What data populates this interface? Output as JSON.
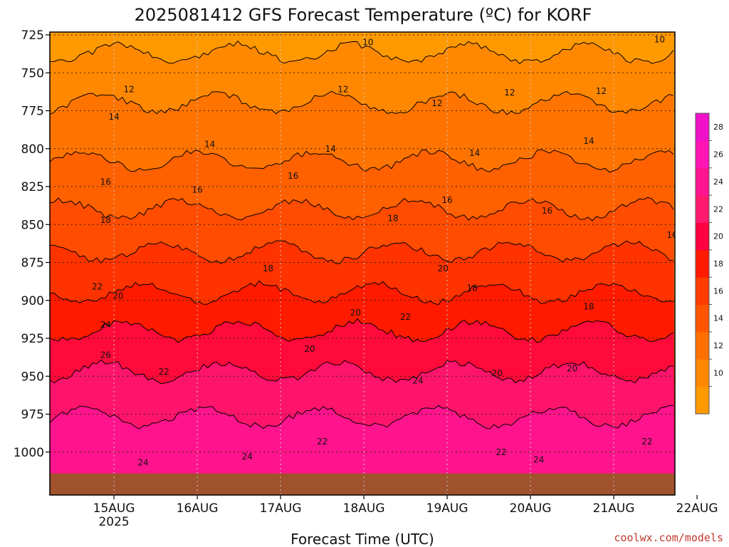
{
  "chart_data": {
    "type": "heatmap",
    "title": "2025081412 GFS Forecast Temperature (ºC) for KORF",
    "xlabel": "Forecast Time (UTC)",
    "x_ticks": [
      "15AUG",
      "16AUG",
      "17AUG",
      "18AUG",
      "19AUG",
      "20AUG",
      "21AUG",
      "22AUG"
    ],
    "x_year": "2025",
    "y_ticks": [
      725,
      750,
      775,
      800,
      825,
      850,
      875,
      900,
      925,
      950,
      975,
      1000
    ],
    "ylim": [
      1015,
      715
    ],
    "y_scale": "pressure (hPa)",
    "grid": "dotted",
    "colorbar": {
      "levels": [
        10,
        12,
        14,
        16,
        18,
        20,
        22,
        24,
        26,
        28
      ],
      "colors": [
        "#ff9900",
        "#ff8800",
        "#ff7000",
        "#ff5500",
        "#ff3b00",
        "#ff1a00",
        "#ff0040",
        "#ff1a6e",
        "#ff1490",
        "#ff14b4",
        "#f012c8"
      ]
    },
    "contour_labels": [
      {
        "text": "10",
        "x": 3.05,
        "y": 730
      },
      {
        "text": "10",
        "x": 6.55,
        "y": 728
      },
      {
        "text": "12",
        "x": 0.18,
        "y": 761
      },
      {
        "text": "12",
        "x": 2.75,
        "y": 761
      },
      {
        "text": "12",
        "x": 3.88,
        "y": 770
      },
      {
        "text": "12",
        "x": 4.75,
        "y": 763
      },
      {
        "text": "12",
        "x": 5.85,
        "y": 762
      },
      {
        "text": "12",
        "x": 6.98,
        "y": 779
      },
      {
        "text": "14",
        "x": 0.0,
        "y": 779
      },
      {
        "text": "14",
        "x": 1.15,
        "y": 797
      },
      {
        "text": "14",
        "x": 2.6,
        "y": 800
      },
      {
        "text": "14",
        "x": 4.33,
        "y": 803
      },
      {
        "text": "14",
        "x": 5.7,
        "y": 795
      },
      {
        "text": "14",
        "x": 6.9,
        "y": 814
      },
      {
        "text": "16",
        "x": -0.1,
        "y": 822
      },
      {
        "text": "16",
        "x": 1.0,
        "y": 827
      },
      {
        "text": "16",
        "x": 2.15,
        "y": 818
      },
      {
        "text": "16",
        "x": 4.0,
        "y": 834
      },
      {
        "text": "16",
        "x": 5.2,
        "y": 841
      },
      {
        "text": "16",
        "x": 6.7,
        "y": 857
      },
      {
        "text": "18",
        "x": -0.1,
        "y": 847
      },
      {
        "text": "18",
        "x": 1.85,
        "y": 879
      },
      {
        "text": "18",
        "x": 3.35,
        "y": 846
      },
      {
        "text": "18",
        "x": 4.3,
        "y": 892
      },
      {
        "text": "18",
        "x": 5.7,
        "y": 904
      },
      {
        "text": "18",
        "x": 6.95,
        "y": 945
      },
      {
        "text": "20",
        "x": 0.05,
        "y": 897
      },
      {
        "text": "20",
        "x": 2.9,
        "y": 908
      },
      {
        "text": "20",
        "x": 2.35,
        "y": 932
      },
      {
        "text": "20",
        "x": 3.95,
        "y": 879
      },
      {
        "text": "20",
        "x": 4.6,
        "y": 948
      },
      {
        "text": "20",
        "x": 5.5,
        "y": 945
      },
      {
        "text": "20",
        "x": 7.05,
        "y": 979
      },
      {
        "text": "22",
        "x": -0.2,
        "y": 891
      },
      {
        "text": "22",
        "x": 3.5,
        "y": 911
      },
      {
        "text": "22",
        "x": 0.6,
        "y": 947
      },
      {
        "text": "22",
        "x": 2.5,
        "y": 993
      },
      {
        "text": "22",
        "x": 4.65,
        "y": 1000
      },
      {
        "text": "22",
        "x": 6.4,
        "y": 993
      },
      {
        "text": "24",
        "x": -0.1,
        "y": 916
      },
      {
        "text": "24",
        "x": 3.65,
        "y": 953
      },
      {
        "text": "24",
        "x": 0.35,
        "y": 1007
      },
      {
        "text": "24",
        "x": 1.6,
        "y": 1003
      },
      {
        "text": "24",
        "x": 5.1,
        "y": 1005
      },
      {
        "text": "26",
        "x": -0.1,
        "y": 936
      }
    ],
    "ground_color": "#a0522d",
    "credit": "coolwx.com/models"
  }
}
